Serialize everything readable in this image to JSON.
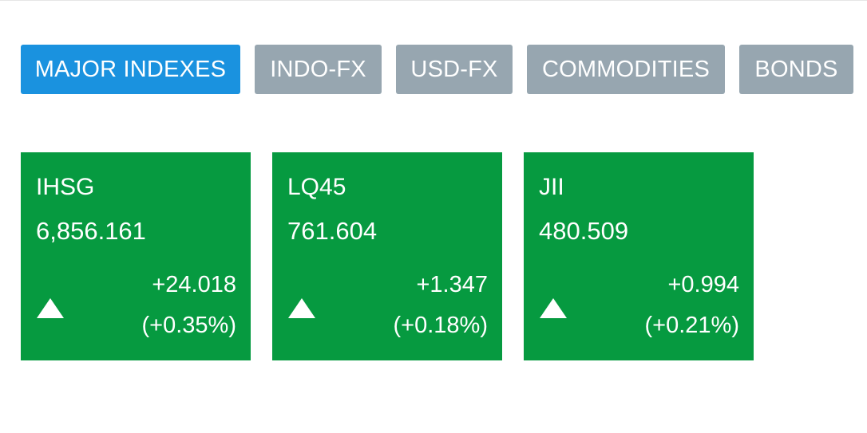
{
  "colors": {
    "active_tab": "#1a92df",
    "inactive_tab": "#97a6b0",
    "positive_card": "#069a40",
    "text": "#ffffff"
  },
  "tabs": [
    {
      "label": "MAJOR INDEXES",
      "active": true
    },
    {
      "label": "INDO-FX",
      "active": false
    },
    {
      "label": "USD-FX",
      "active": false
    },
    {
      "label": "COMMODITIES",
      "active": false
    },
    {
      "label": "BONDS",
      "active": false
    }
  ],
  "indexes": [
    {
      "name": "IHSG",
      "value": "6,856.161",
      "change": "+24.018",
      "percent": "(+0.35%)",
      "direction_icon": "triangle-up-icon"
    },
    {
      "name": "LQ45",
      "value": "761.604",
      "change": "+1.347",
      "percent": "(+0.18%)",
      "direction_icon": "triangle-up-icon"
    },
    {
      "name": "JII",
      "value": "480.509",
      "change": "+0.994",
      "percent": "(+0.21%)",
      "direction_icon": "triangle-up-icon"
    }
  ]
}
